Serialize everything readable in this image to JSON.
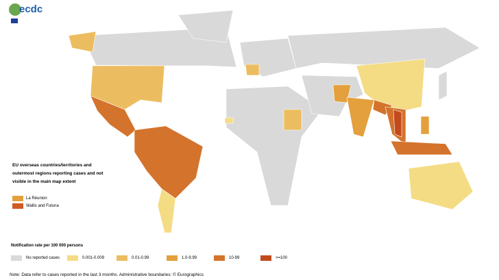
{
  "logo": {
    "text": "ecdc"
  },
  "overseas": {
    "title": "EU overseas countries/territories and outermost regions reporting cases and not visible in the main map extent",
    "items": [
      {
        "label": "La Réunion",
        "color": "#e3a03c"
      },
      {
        "label": "Wallis and Futuna",
        "color": "#cf5a22"
      }
    ]
  },
  "legend": {
    "title": "Notification rate per 100 000 persons",
    "items": [
      {
        "label": "No reported cases",
        "color": "#d9d9d9"
      },
      {
        "label": "0.001-0.009",
        "color": "#f4dc84"
      },
      {
        "label": "0.01-0.99",
        "color": "#ecbd60"
      },
      {
        "label": "1.0-9.99",
        "color": "#e3a03c"
      },
      {
        "label": "10-99",
        "color": "#d4732c"
      },
      {
        "label": ">=100",
        "color": "#c24a1c"
      }
    ]
  },
  "note": "Note: Data refer to cases reported in the last 3 months. Administrative boundaries: © Eurographics"
}
